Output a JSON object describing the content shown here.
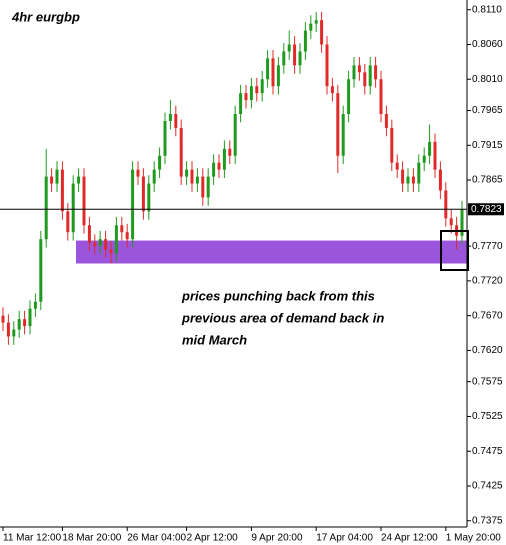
{
  "chart_data": {
    "type": "candlestick",
    "title": "4hr eurgbp",
    "annotation": [
      "prices punching back from this",
      "previous area of demand back in",
      "mid March"
    ],
    "categories": [
      "11 Mar 12:00",
      null,
      null,
      null,
      null,
      null,
      null,
      null,
      null,
      null,
      null,
      "18 Mar 20:00",
      null,
      null,
      null,
      null,
      null,
      null,
      null,
      null,
      null,
      null,
      null,
      "26 Mar 04:00",
      null,
      null,
      null,
      null,
      null,
      null,
      null,
      null,
      null,
      null,
      "2 Apr 12:00",
      null,
      null,
      null,
      null,
      null,
      null,
      null,
      null,
      null,
      null,
      null,
      "9 Apr 20:00",
      null,
      null,
      null,
      null,
      null,
      null,
      null,
      null,
      null,
      null,
      null,
      "17 Apr 04:00",
      null,
      null,
      null,
      null,
      null,
      null,
      null,
      null,
      null,
      null,
      null,
      "24 Apr 12:00",
      null,
      null,
      null,
      null,
      null,
      null,
      null,
      null,
      null,
      null,
      null,
      "1 May 20:00",
      null,
      null,
      null
    ],
    "open": [
      0.767,
      0.766,
      0.764,
      0.765,
      0.7665,
      0.7655,
      0.768,
      0.769,
      0.778,
      0.787,
      0.786,
      0.788,
      0.782,
      0.779,
      0.786,
      0.787,
      0.78,
      0.7775,
      0.777,
      0.778,
      0.7765,
      0.776,
      0.78,
      0.779,
      0.778,
      0.788,
      0.787,
      0.782,
      0.786,
      0.788,
      0.79,
      0.795,
      0.796,
      0.794,
      0.787,
      0.788,
      0.786,
      0.787,
      0.784,
      0.787,
      0.789,
      0.788,
      0.791,
      0.79,
      0.796,
      0.799,
      0.798,
      0.8,
      0.799,
      0.801,
      0.804,
      0.8,
      0.803,
      0.805,
      0.806,
      0.803,
      0.805,
      0.808,
      0.809,
      0.8095,
      0.806,
      0.8,
      0.799,
      0.79,
      0.796,
      0.801,
      0.803,
      0.802,
      0.8,
      0.803,
      0.801,
      0.796,
      0.794,
      0.789,
      0.788,
      0.786,
      0.787,
      0.786,
      0.789,
      0.79,
      0.792,
      0.788,
      0.785,
      0.781,
      0.78,
      0.7785
    ],
    "high": [
      0.7682,
      0.7672,
      0.7662,
      0.7677,
      0.7677,
      0.7692,
      0.7702,
      0.7792,
      0.791,
      0.7882,
      0.7892,
      0.7892,
      0.7832,
      0.7872,
      0.7882,
      0.7882,
      0.7812,
      0.7787,
      0.7792,
      0.7792,
      0.7777,
      0.7812,
      0.7812,
      0.7802,
      0.7892,
      0.7892,
      0.7882,
      0.7872,
      0.7892,
      0.7912,
      0.7962,
      0.798,
      0.7972,
      0.7952,
      0.7892,
      0.7892,
      0.7882,
      0.7882,
      0.7882,
      0.7902,
      0.7902,
      0.7922,
      0.7922,
      0.7972,
      0.8002,
      0.8002,
      0.8012,
      0.8012,
      0.8022,
      0.8052,
      0.8052,
      0.8042,
      0.8062,
      0.808,
      0.8072,
      0.8062,
      0.8092,
      0.8102,
      0.8107,
      0.8107,
      0.8072,
      0.8012,
      0.8002,
      0.7972,
      0.8022,
      0.8042,
      0.8042,
      0.8032,
      0.8042,
      0.8042,
      0.8022,
      0.7972,
      0.7952,
      0.7902,
      0.7892,
      0.7882,
      0.7882,
      0.7902,
      0.7912,
      0.7945,
      0.7932,
      0.7892,
      0.7862,
      0.7822,
      0.7812,
      0.7835
    ],
    "low": [
      0.7648,
      0.7628,
      0.7628,
      0.7638,
      0.7643,
      0.7643,
      0.7668,
      0.7678,
      0.7768,
      0.7848,
      0.7848,
      0.7808,
      0.7778,
      0.7778,
      0.7848,
      0.7788,
      0.7763,
      0.7758,
      0.7758,
      0.7753,
      0.7745,
      0.7748,
      0.7778,
      0.7768,
      0.7768,
      0.7858,
      0.7808,
      0.7808,
      0.7848,
      0.7868,
      0.7888,
      0.7938,
      0.7928,
      0.7858,
      0.7858,
      0.7848,
      0.7848,
      0.7828,
      0.7828,
      0.7858,
      0.7868,
      0.7868,
      0.7888,
      0.7888,
      0.7948,
      0.7968,
      0.7968,
      0.7978,
      0.7978,
      0.7998,
      0.7988,
      0.7988,
      0.8018,
      0.8038,
      0.8018,
      0.8018,
      0.8038,
      0.8068,
      0.8078,
      0.8048,
      0.7988,
      0.7978,
      0.7875,
      0.7888,
      0.7948,
      0.7998,
      0.8008,
      0.7988,
      0.7988,
      0.7998,
      0.7948,
      0.7928,
      0.7878,
      0.7868,
      0.7848,
      0.7848,
      0.7848,
      0.7848,
      0.7878,
      0.7888,
      0.7868,
      0.7838,
      0.7798,
      0.7788,
      0.7765,
      0.7773
    ],
    "close": [
      0.766,
      0.764,
      0.765,
      0.7665,
      0.7655,
      0.768,
      0.769,
      0.778,
      0.787,
      0.786,
      0.788,
      0.782,
      0.779,
      0.786,
      0.787,
      0.78,
      0.7775,
      0.777,
      0.778,
      0.7765,
      0.776,
      0.78,
      0.779,
      0.778,
      0.788,
      0.787,
      0.782,
      0.786,
      0.788,
      0.79,
      0.795,
      0.796,
      0.794,
      0.787,
      0.788,
      0.786,
      0.787,
      0.784,
      0.787,
      0.789,
      0.788,
      0.791,
      0.79,
      0.796,
      0.799,
      0.798,
      0.8,
      0.799,
      0.801,
      0.804,
      0.8,
      0.803,
      0.805,
      0.806,
      0.803,
      0.805,
      0.808,
      0.809,
      0.8095,
      0.806,
      0.8,
      0.799,
      0.79,
      0.796,
      0.801,
      0.803,
      0.802,
      0.8,
      0.803,
      0.801,
      0.796,
      0.794,
      0.789,
      0.788,
      0.786,
      0.787,
      0.786,
      0.789,
      0.79,
      0.792,
      0.788,
      0.785,
      0.781,
      0.78,
      0.7785,
      0.7823
    ],
    "up_color": "#1f9a1f",
    "down_color": "#e02a2a",
    "current_price": 0.7823,
    "demand_zone": {
      "from": 0.7745,
      "to": 0.7778,
      "color": "#9b55dc"
    },
    "ylim": [
      0.7366,
      0.8124
    ],
    "yticks": [
      {
        "value": 0.811,
        "label": "0.8110"
      },
      {
        "value": 0.806,
        "label": "0.8060"
      },
      {
        "value": 0.801,
        "label": "0.8010"
      },
      0.7965,
      0.7915,
      0.7865,
      {
        "value": 0.777,
        "label": "0.7770"
      },
      {
        "value": 0.772,
        "label": "0.7720"
      },
      {
        "value": 0.767,
        "label": "0.7670"
      },
      {
        "value": 0.762,
        "label": "0.7620"
      },
      0.7575,
      0.7525,
      0.7475,
      0.7425,
      0.7375
    ],
    "grid": false
  }
}
